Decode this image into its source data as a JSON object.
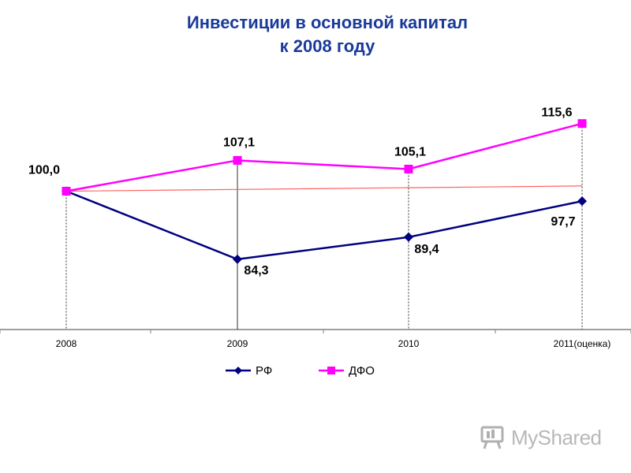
{
  "chart_data": {
    "type": "line",
    "title_line1": "Инвестиции в основной капитал",
    "title_line2": "к 2008 году",
    "categories": [
      "2008",
      "2009",
      "2010",
      "2011(оценка)"
    ],
    "series": [
      {
        "name": "РФ",
        "values": [
          100.0,
          84.3,
          89.4,
          97.7
        ],
        "labels": [
          "",
          "84,3",
          "89,4",
          "97,7"
        ],
        "color": "#000080",
        "marker": "diamond"
      },
      {
        "name": "ДФО",
        "values": [
          100.0,
          107.1,
          105.1,
          115.6
        ],
        "labels": [
          "100,0",
          "107,1",
          "105,1",
          "115,6"
        ],
        "color": "#ff00ff",
        "marker": "square"
      }
    ],
    "trend": {
      "values": [
        100.0,
        100.4,
        100.8,
        101.2
      ],
      "color": "#ff6060"
    },
    "ylim": [
      70,
      125
    ],
    "grid": false,
    "legend_position": "bottom"
  },
  "watermark": {
    "text": "MyShared"
  }
}
